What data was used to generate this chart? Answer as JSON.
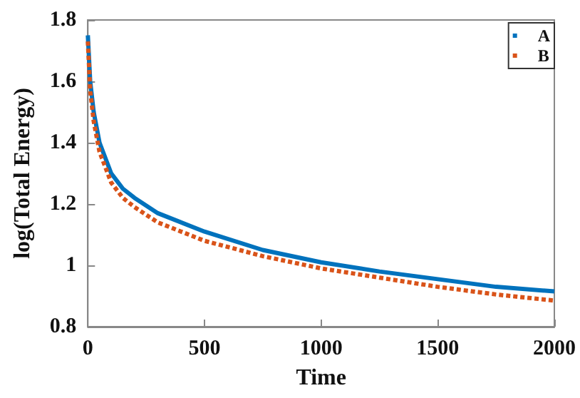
{
  "chart_data": {
    "type": "line",
    "xlabel": "Time",
    "ylabel": "log(Total Energy)",
    "xlim": [
      0,
      2000
    ],
    "xticks": [
      0,
      500,
      1000,
      1500,
      2000
    ],
    "ylim": [
      0.8,
      1.8
    ],
    "yticks": [
      0.8,
      {
        "value": 1,
        "label": "1"
      },
      1.2,
      1.4,
      1.6,
      1.8
    ],
    "grid": false,
    "legend": "top right",
    "marker": "none",
    "series": [
      {
        "name": "A",
        "color": "#0072bd",
        "line_style": "solid",
        "x": [
          0,
          10,
          25,
          50,
          100,
          150,
          200,
          300,
          500,
          750,
          1000,
          1250,
          1500,
          1750,
          2000
        ],
        "values": [
          1.75,
          1.6,
          1.5,
          1.4,
          1.3,
          1.25,
          1.22,
          1.17,
          1.11,
          1.05,
          1.01,
          0.98,
          0.955,
          0.93,
          0.915
        ]
      },
      {
        "name": "B",
        "color": "#d95319",
        "line_style": "dotted",
        "x": [
          0,
          10,
          25,
          50,
          100,
          150,
          200,
          300,
          500,
          750,
          1000,
          1250,
          1500,
          1750,
          2000
        ],
        "values": [
          1.73,
          1.57,
          1.47,
          1.37,
          1.27,
          1.22,
          1.19,
          1.14,
          1.08,
          1.03,
          0.99,
          0.96,
          0.93,
          0.905,
          0.885
        ]
      }
    ]
  }
}
